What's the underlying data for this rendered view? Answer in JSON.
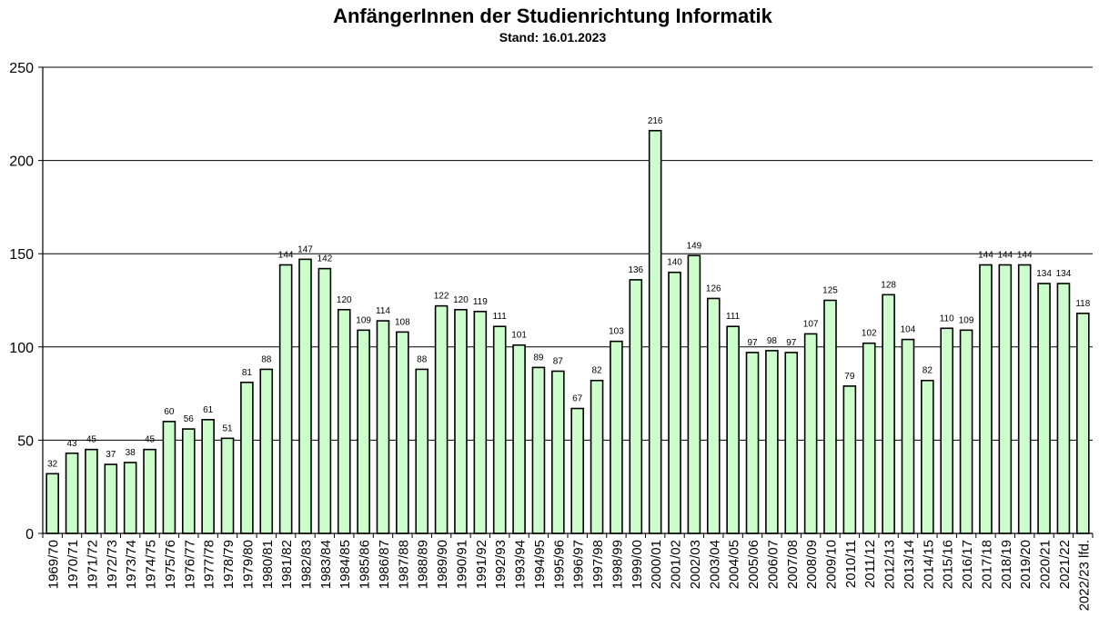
{
  "chart_data": {
    "type": "bar",
    "title": "AnfängerInnen der Studienrichtung Informatik",
    "subtitle": "Stand: 16.01.2023",
    "xlabel": "",
    "ylabel": "",
    "ylim": [
      0,
      250
    ],
    "yticks": [
      0,
      50,
      100,
      150,
      200,
      250
    ],
    "grid": true,
    "legend": "none",
    "bar_color": "#ccffcc",
    "edge_color": "#000000",
    "categories": [
      "1969/70",
      "1970/71",
      "1971/72",
      "1972/73",
      "1973/74",
      "1974/75",
      "1975/76",
      "1976/77",
      "1977/78",
      "1978/79",
      "1979/80",
      "1980/81",
      "1981/82",
      "1982/83",
      "1983/84",
      "1984/85",
      "1985/86",
      "1986/87",
      "1987/88",
      "1988/89",
      "1989/90",
      "1990/91",
      "1991/92",
      "1992/93",
      "1993/94",
      "1994/95",
      "1995/96",
      "1996/97",
      "1997/98",
      "1998/99",
      "1999/00",
      "2000/01",
      "2001/02",
      "2002/03",
      "2003/04",
      "2004/05",
      "2005/06",
      "2006/07",
      "2007/08",
      "2008/09",
      "2009/10",
      "2010/11",
      "2011/12",
      "2012/13",
      "2013/14",
      "2014/15",
      "2015/16",
      "2016/17",
      "2017/18",
      "2018/19",
      "2019/20",
      "2020/21",
      "2021/22",
      "2022/23 lfd."
    ],
    "values": [
      32,
      43,
      45,
      37,
      38,
      45,
      60,
      56,
      61,
      51,
      81,
      88,
      144,
      147,
      142,
      120,
      109,
      114,
      108,
      88,
      122,
      120,
      119,
      111,
      101,
      89,
      87,
      67,
      82,
      103,
      136,
      216,
      140,
      149,
      126,
      111,
      97,
      98,
      97,
      107,
      125,
      79,
      102,
      128,
      104,
      82,
      110,
      109,
      144,
      144,
      144,
      134,
      134,
      118
    ]
  }
}
